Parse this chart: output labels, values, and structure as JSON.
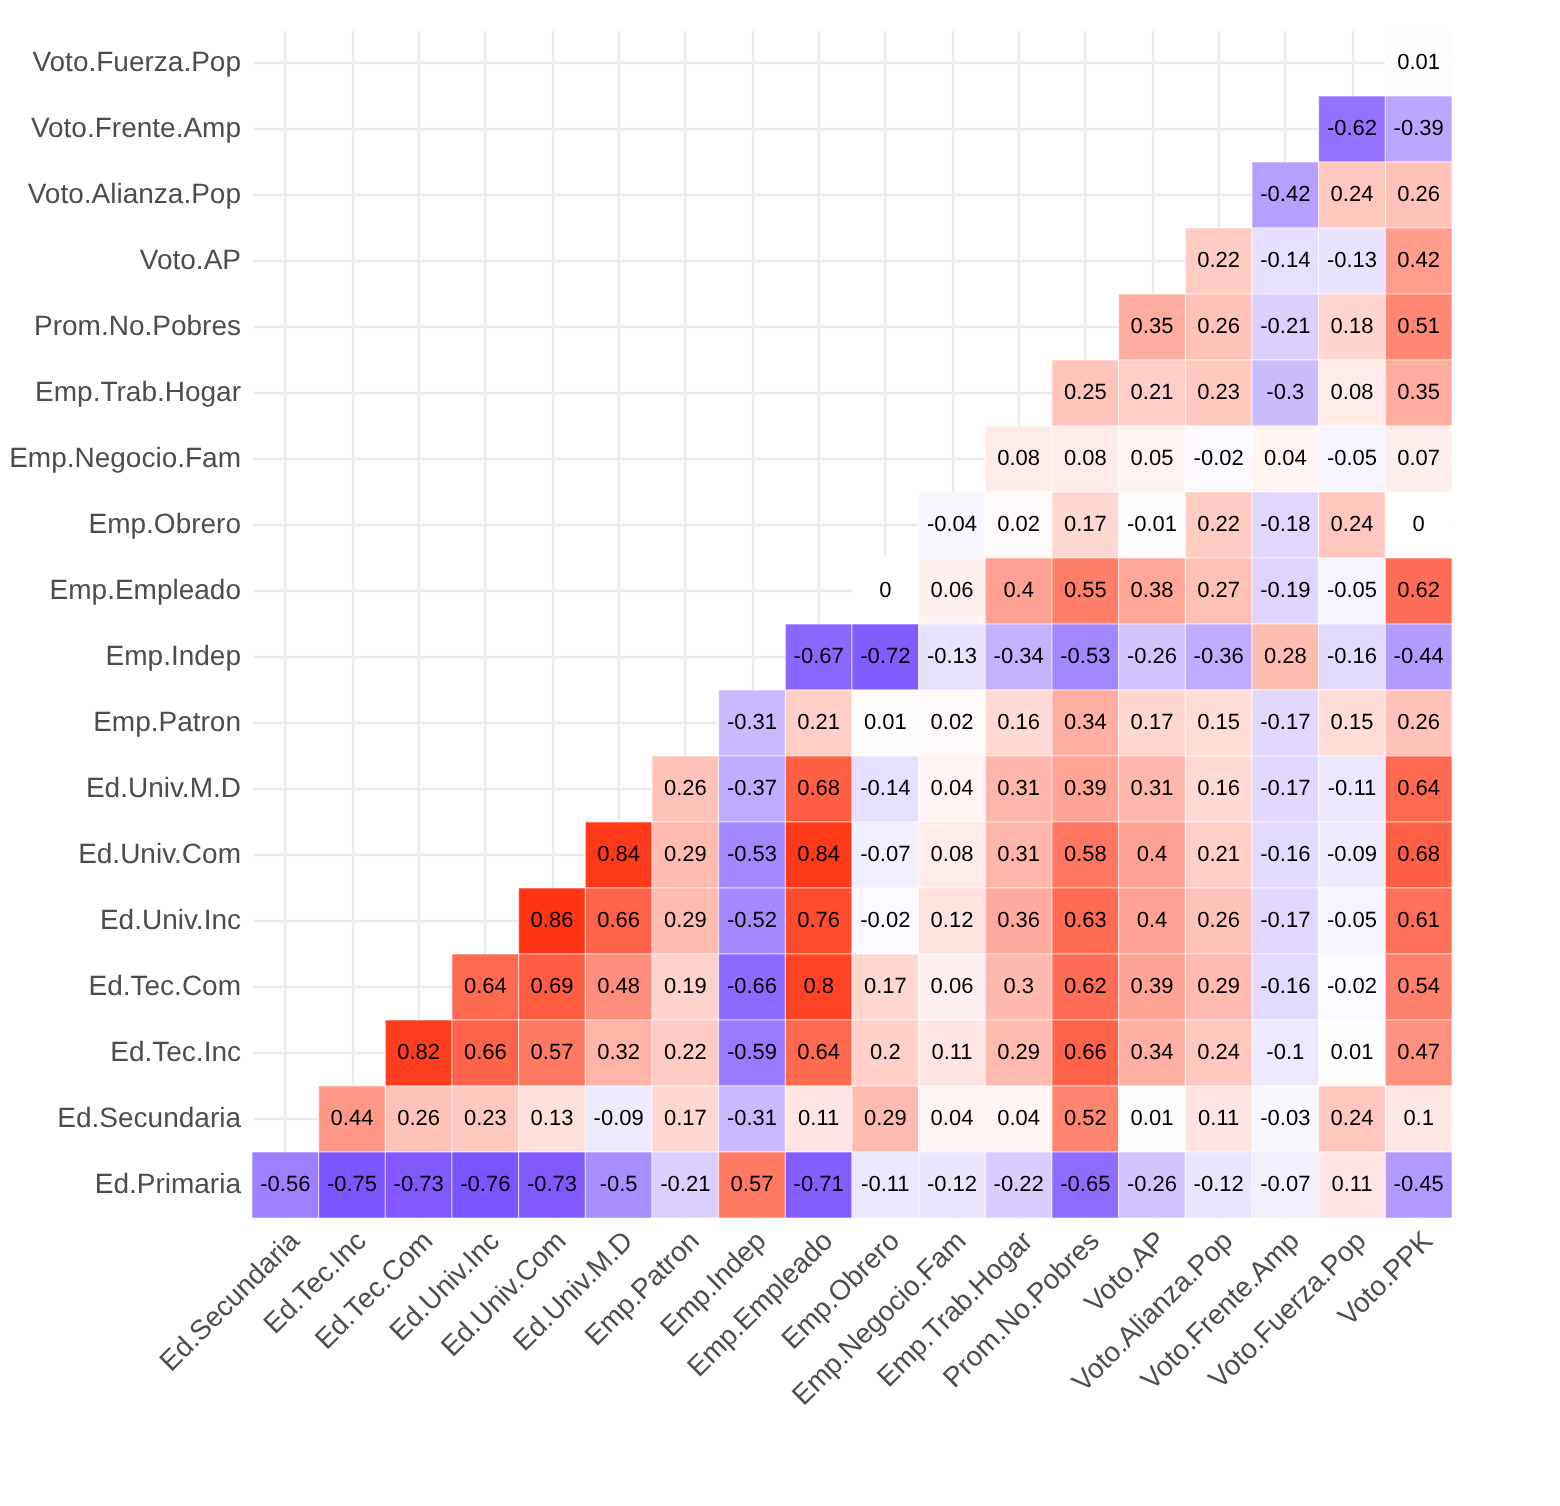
{
  "chart_data": {
    "type": "heatmap",
    "categories": [
      "Ed.Secundaria",
      "Ed.Tec.Inc",
      "Ed.Tec.Com",
      "Ed.Univ.Inc",
      "Ed.Univ.Com",
      "Ed.Univ.M.D",
      "Emp.Patron",
      "Emp.Indep",
      "Emp.Empleado",
      "Emp.Obrero",
      "Emp.Negocio.Fam",
      "Emp.Trab.Hogar",
      "Prom.No.Pobres",
      "Voto.AP",
      "Voto.Alianza.Pop",
      "Voto.Frente.Amp",
      "Voto.Fuerza.Pop",
      "Voto.PPK"
    ],
    "y_categories": [
      "Voto.Fuerza.Pop",
      "Voto.Frente.Amp",
      "Voto.Alianza.Pop",
      "Voto.AP",
      "Prom.No.Pobres",
      "Emp.Trab.Hogar",
      "Emp.Negocio.Fam",
      "Emp.Obrero",
      "Emp.Empleado",
      "Emp.Indep",
      "Emp.Patron",
      "Ed.Univ.M.D",
      "Ed.Univ.Com",
      "Ed.Univ.Inc",
      "Ed.Tec.Com",
      "Ed.Tec.Inc",
      "Ed.Secundaria",
      "Ed.Primaria"
    ],
    "cells": [
      [
        null,
        null,
        null,
        null,
        null,
        null,
        null,
        null,
        null,
        null,
        null,
        null,
        null,
        null,
        null,
        null,
        null,
        0.01
      ],
      [
        null,
        null,
        null,
        null,
        null,
        null,
        null,
        null,
        null,
        null,
        null,
        null,
        null,
        null,
        null,
        null,
        -0.62,
        -0.39
      ],
      [
        null,
        null,
        null,
        null,
        null,
        null,
        null,
        null,
        null,
        null,
        null,
        null,
        null,
        null,
        null,
        -0.42,
        0.24,
        0.26
      ],
      [
        null,
        null,
        null,
        null,
        null,
        null,
        null,
        null,
        null,
        null,
        null,
        null,
        null,
        null,
        0.22,
        -0.14,
        -0.13,
        0.42
      ],
      [
        null,
        null,
        null,
        null,
        null,
        null,
        null,
        null,
        null,
        null,
        null,
        null,
        null,
        0.35,
        0.26,
        -0.21,
        0.18,
        0.51
      ],
      [
        null,
        null,
        null,
        null,
        null,
        null,
        null,
        null,
        null,
        null,
        null,
        null,
        0.25,
        0.21,
        0.23,
        -0.3,
        0.08,
        0.35
      ],
      [
        null,
        null,
        null,
        null,
        null,
        null,
        null,
        null,
        null,
        null,
        null,
        0.08,
        0.08,
        0.05,
        -0.02,
        0.04,
        -0.05,
        0.07
      ],
      [
        null,
        null,
        null,
        null,
        null,
        null,
        null,
        null,
        null,
        null,
        -0.04,
        0.02,
        0.17,
        -0.01,
        0.22,
        -0.18,
        0.24,
        0
      ],
      [
        null,
        null,
        null,
        null,
        null,
        null,
        null,
        null,
        null,
        0,
        0.06,
        0.4,
        0.55,
        0.38,
        0.27,
        -0.19,
        -0.05,
        0.62
      ],
      [
        null,
        null,
        null,
        null,
        null,
        null,
        null,
        null,
        -0.67,
        -0.72,
        -0.13,
        -0.34,
        -0.53,
        -0.26,
        -0.36,
        0.28,
        -0.16,
        -0.44
      ],
      [
        null,
        null,
        null,
        null,
        null,
        null,
        null,
        -0.31,
        0.21,
        0.01,
        0.02,
        0.16,
        0.34,
        0.17,
        0.15,
        -0.17,
        0.15,
        0.26
      ],
      [
        null,
        null,
        null,
        null,
        null,
        null,
        0.26,
        -0.37,
        0.68,
        -0.14,
        0.04,
        0.31,
        0.39,
        0.31,
        0.16,
        -0.17,
        -0.11,
        0.64
      ],
      [
        null,
        null,
        null,
        null,
        null,
        0.84,
        0.29,
        -0.53,
        0.84,
        -0.07,
        0.08,
        0.31,
        0.58,
        0.4,
        0.21,
        -0.16,
        -0.09,
        0.68
      ],
      [
        null,
        null,
        null,
        null,
        0.86,
        0.66,
        0.29,
        -0.52,
        0.76,
        -0.02,
        0.12,
        0.36,
        0.63,
        0.4,
        0.26,
        -0.17,
        -0.05,
        0.61
      ],
      [
        null,
        null,
        null,
        0.64,
        0.69,
        0.48,
        0.19,
        -0.66,
        0.8,
        0.17,
        0.06,
        0.3,
        0.62,
        0.39,
        0.29,
        -0.16,
        -0.02,
        0.54
      ],
      [
        null,
        null,
        0.82,
        0.66,
        0.57,
        0.32,
        0.22,
        -0.59,
        0.64,
        0.2,
        0.11,
        0.29,
        0.66,
        0.34,
        0.24,
        -0.1,
        0.01,
        0.47
      ],
      [
        null,
        0.44,
        0.26,
        0.23,
        0.13,
        -0.09,
        0.17,
        -0.31,
        0.11,
        0.29,
        0.04,
        0.04,
        0.52,
        0.01,
        0.11,
        -0.03,
        0.24,
        0.1
      ],
      [
        -0.56,
        -0.75,
        -0.73,
        -0.76,
        -0.73,
        -0.5,
        -0.21,
        0.57,
        -0.71,
        -0.11,
        -0.12,
        -0.22,
        -0.65,
        -0.26,
        -0.12,
        -0.07,
        0.11,
        -0.45
      ]
    ],
    "colors": [
      "#6a3cff",
      "#ffffff",
      "#ff3514"
    ],
    "data_labels": true,
    "grid": true,
    "legend": false
  }
}
